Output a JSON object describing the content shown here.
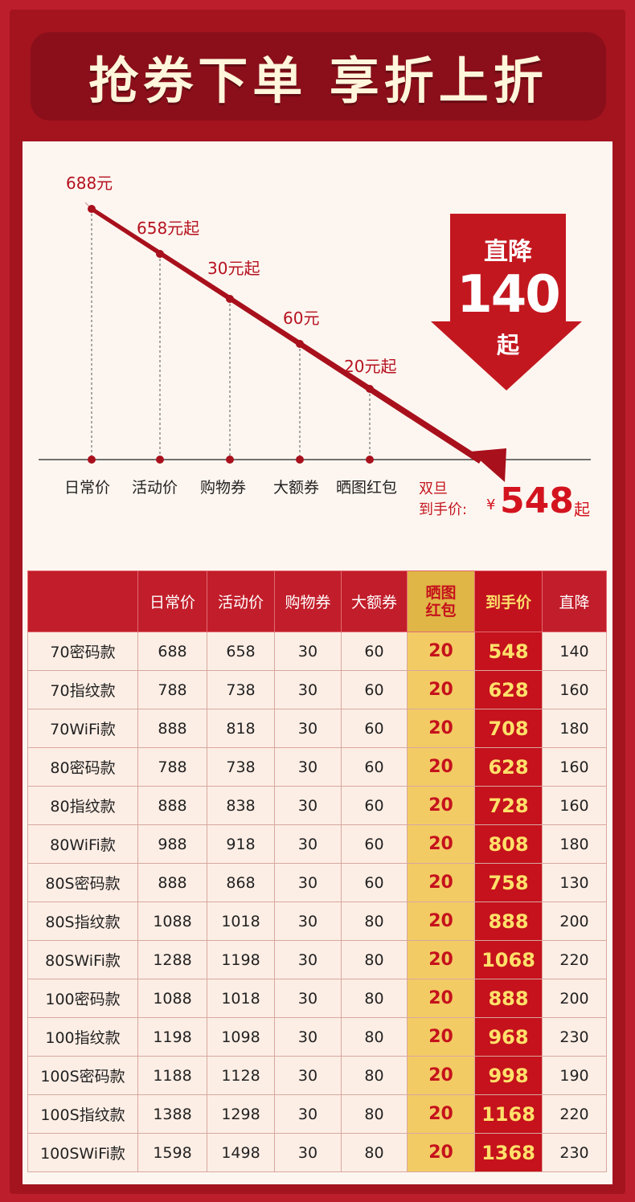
{
  "banner": {
    "title": "抢券下单 享折上折"
  },
  "chart": {
    "points": [
      {
        "price_label": "688元",
        "axis_label": "日常价"
      },
      {
        "price_label": "658元起",
        "axis_label": "活动价"
      },
      {
        "price_label": "30元起",
        "axis_label": "购物券"
      },
      {
        "price_label": "60元",
        "axis_label": "大额券"
      },
      {
        "price_label": "20元起",
        "axis_label": "晒图红包"
      }
    ],
    "drop": {
      "line1": "直降",
      "amount": "140",
      "line3": "起"
    },
    "final": {
      "line1": "双旦",
      "line2": "到手价:",
      "currency": "¥",
      "price": "548",
      "suffix": "起"
    },
    "colors": {
      "accent": "#c3171f",
      "line": "#a8101c"
    }
  },
  "table": {
    "headers": [
      "",
      "日常价",
      "活动价",
      "购物券",
      "大额券",
      "晒图红包",
      "到手价",
      "直降"
    ],
    "rows": [
      [
        "70密码款",
        "688",
        "658",
        "30",
        "60",
        "20",
        "548",
        "140"
      ],
      [
        "70指纹款",
        "788",
        "738",
        "30",
        "60",
        "20",
        "628",
        "160"
      ],
      [
        "70WiFi款",
        "888",
        "818",
        "30",
        "60",
        "20",
        "708",
        "180"
      ],
      [
        "80密码款",
        "788",
        "738",
        "30",
        "60",
        "20",
        "628",
        "160"
      ],
      [
        "80指纹款",
        "888",
        "838",
        "30",
        "60",
        "20",
        "728",
        "160"
      ],
      [
        "80WiFi款",
        "988",
        "918",
        "30",
        "60",
        "20",
        "808",
        "180"
      ],
      [
        "80S密码款",
        "888",
        "868",
        "30",
        "60",
        "20",
        "758",
        "130"
      ],
      [
        "80S指纹款",
        "1088",
        "1018",
        "30",
        "80",
        "20",
        "888",
        "200"
      ],
      [
        "80SWiFi款",
        "1288",
        "1198",
        "30",
        "80",
        "20",
        "1068",
        "220"
      ],
      [
        "100密码款",
        "1088",
        "1018",
        "30",
        "80",
        "20",
        "888",
        "200"
      ],
      [
        "100指纹款",
        "1198",
        "1098",
        "30",
        "80",
        "20",
        "968",
        "230"
      ],
      [
        "100S密码款",
        "1188",
        "1128",
        "30",
        "80",
        "20",
        "998",
        "190"
      ],
      [
        "100S指纹款",
        "1388",
        "1298",
        "30",
        "80",
        "20",
        "1168",
        "220"
      ],
      [
        "100SWiFi款",
        "1598",
        "1498",
        "30",
        "80",
        "20",
        "1368",
        "230"
      ]
    ]
  }
}
